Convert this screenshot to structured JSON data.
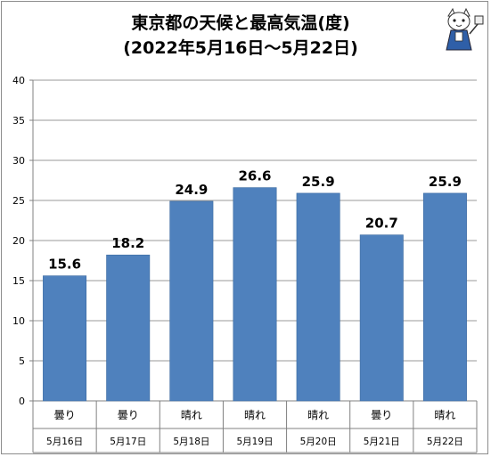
{
  "chart_data": {
    "type": "bar",
    "title_line1": "東京都の天候と最高気温(度)",
    "title_line2": "(2022年5月16日～5月22日)",
    "categories": [
      "5月16日",
      "5月17日",
      "5月18日",
      "5月19日",
      "5月20日",
      "5月21日",
      "5月22日"
    ],
    "weather": [
      "曇り",
      "曇り",
      "晴れ",
      "晴れ",
      "晴れ",
      "曇り",
      "晴れ"
    ],
    "values": [
      15.6,
      18.2,
      24.9,
      26.6,
      25.9,
      20.7,
      25.9
    ],
    "value_labels": [
      "15.6",
      "18.2",
      "24.9",
      "26.6",
      "25.9",
      "20.7",
      "25.9"
    ],
    "ylim": [
      0,
      40
    ],
    "yticks": [
      0,
      5,
      10,
      15,
      20,
      25,
      30,
      35,
      40
    ],
    "grid": true,
    "legend": "none",
    "bar_color": "#4f81bd",
    "mascot_icon": "cat-mascot-icon"
  }
}
